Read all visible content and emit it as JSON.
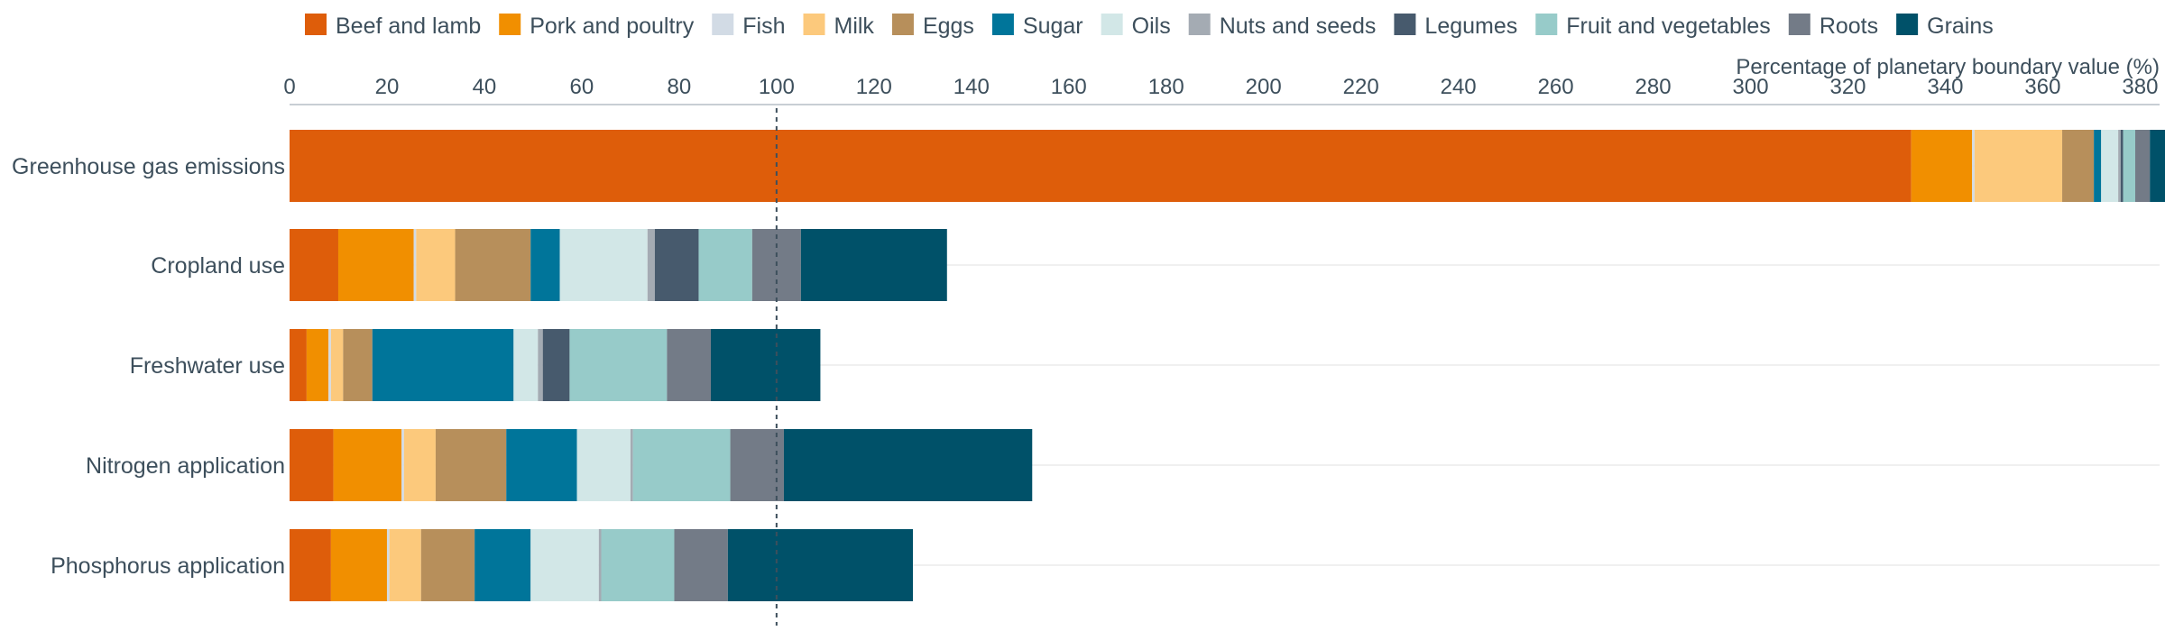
{
  "chart_data": {
    "type": "bar",
    "orientation": "horizontal",
    "stacked": true,
    "title": "",
    "xlabel": "Percentage of planetary boundary value (%)",
    "ylabel": "",
    "xlim": [
      0,
      384
    ],
    "xticks": [
      0,
      20,
      40,
      60,
      80,
      100,
      120,
      140,
      160,
      180,
      200,
      220,
      240,
      260,
      280,
      300,
      320,
      340,
      360,
      380
    ],
    "reference_line": 100,
    "legend_position": "top",
    "grid": "horizontal category lines",
    "categories": [
      "Greenhouse gas emissions",
      "Cropland use",
      "Freshwater use",
      "Nitrogen application",
      "Phosphorus application"
    ],
    "series": [
      {
        "name": "Beef and lamb",
        "color": "#de5d0a",
        "values": [
          333,
          10,
          3.5,
          9,
          8.5
        ]
      },
      {
        "name": "Pork and poultry",
        "color": "#f18f00",
        "values": [
          12.5,
          15.5,
          4.5,
          14,
          11.5
        ]
      },
      {
        "name": "Fish",
        "color": "#d2dbe5",
        "values": [
          0.5,
          0.5,
          0.5,
          0.5,
          0.5
        ]
      },
      {
        "name": "Milk",
        "color": "#fcc97c",
        "values": [
          18,
          8,
          2.5,
          6.5,
          6.5
        ]
      },
      {
        "name": "Eggs",
        "color": "#b78f5b",
        "values": [
          6.5,
          15.5,
          6,
          14.5,
          11
        ]
      },
      {
        "name": "Sugar",
        "color": "#00759a",
        "values": [
          1.5,
          6,
          29,
          14.5,
          11.5
        ]
      },
      {
        "name": "Oils",
        "color": "#d2e7e7",
        "values": [
          3.5,
          18,
          5,
          11,
          14
        ]
      },
      {
        "name": "Nuts and seeds",
        "color": "#a4abb3",
        "values": [
          0.5,
          1.5,
          1,
          0.5,
          0.5
        ]
      },
      {
        "name": "Legumes",
        "color": "#475a6d",
        "values": [
          0.5,
          9,
          5.5,
          0,
          0
        ]
      },
      {
        "name": "Fruit and vegetables",
        "color": "#97cbc9",
        "values": [
          2.5,
          11,
          20,
          20,
          15
        ]
      },
      {
        "name": "Roots",
        "color": "#737b87",
        "values": [
          3,
          10,
          9,
          11,
          11
        ]
      },
      {
        "name": "Grains",
        "color": "#005169",
        "values": [
          4,
          30,
          22.5,
          51,
          38
        ]
      }
    ]
  }
}
